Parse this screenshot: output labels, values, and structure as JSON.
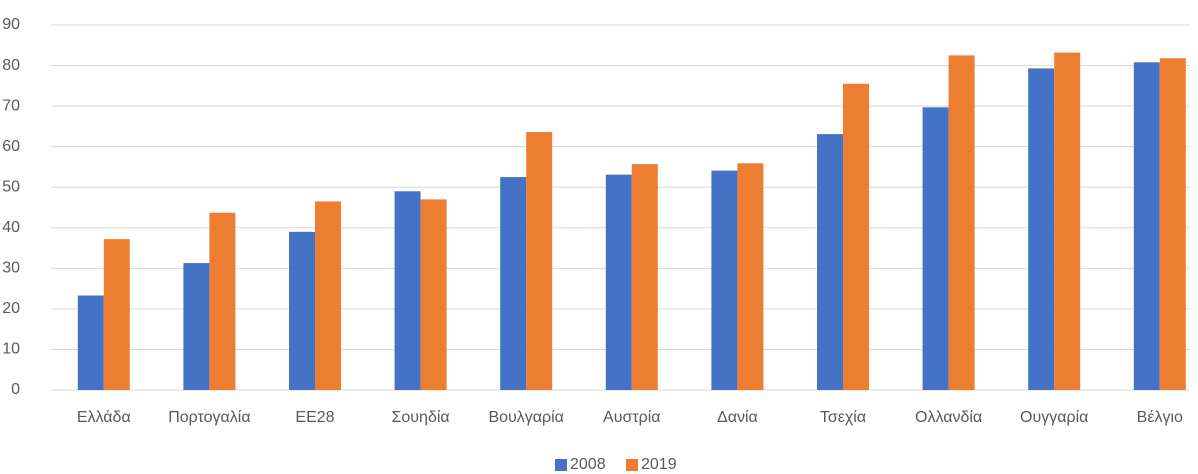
{
  "chart_data": {
    "type": "bar",
    "categories": [
      "Ελλάδα",
      "Πορτογαλία",
      "ΕΕ28",
      "Σουηδία",
      "Βουλγαρία",
      "Αυστρία",
      "Δανία",
      "Τσεχία",
      "Ολλανδία",
      "Ουγγαρία",
      "Βέλγιο"
    ],
    "series": [
      {
        "name": "2008",
        "color": "#4472c4",
        "values": [
          23.3,
          31.3,
          39,
          49,
          52.5,
          53.1,
          54.1,
          63.1,
          69.7,
          79.3,
          80.8
        ]
      },
      {
        "name": "2019",
        "color": "#ed7d31",
        "values": [
          37.2,
          43.7,
          46.5,
          47,
          63.6,
          55.7,
          55.9,
          75.5,
          82.5,
          83.2,
          81.8
        ]
      }
    ],
    "ylim": [
      0,
      90
    ],
    "yticks": [
      0,
      10,
      20,
      30,
      40,
      50,
      60,
      70,
      80,
      90
    ],
    "grid": true,
    "legend": "bottom"
  }
}
